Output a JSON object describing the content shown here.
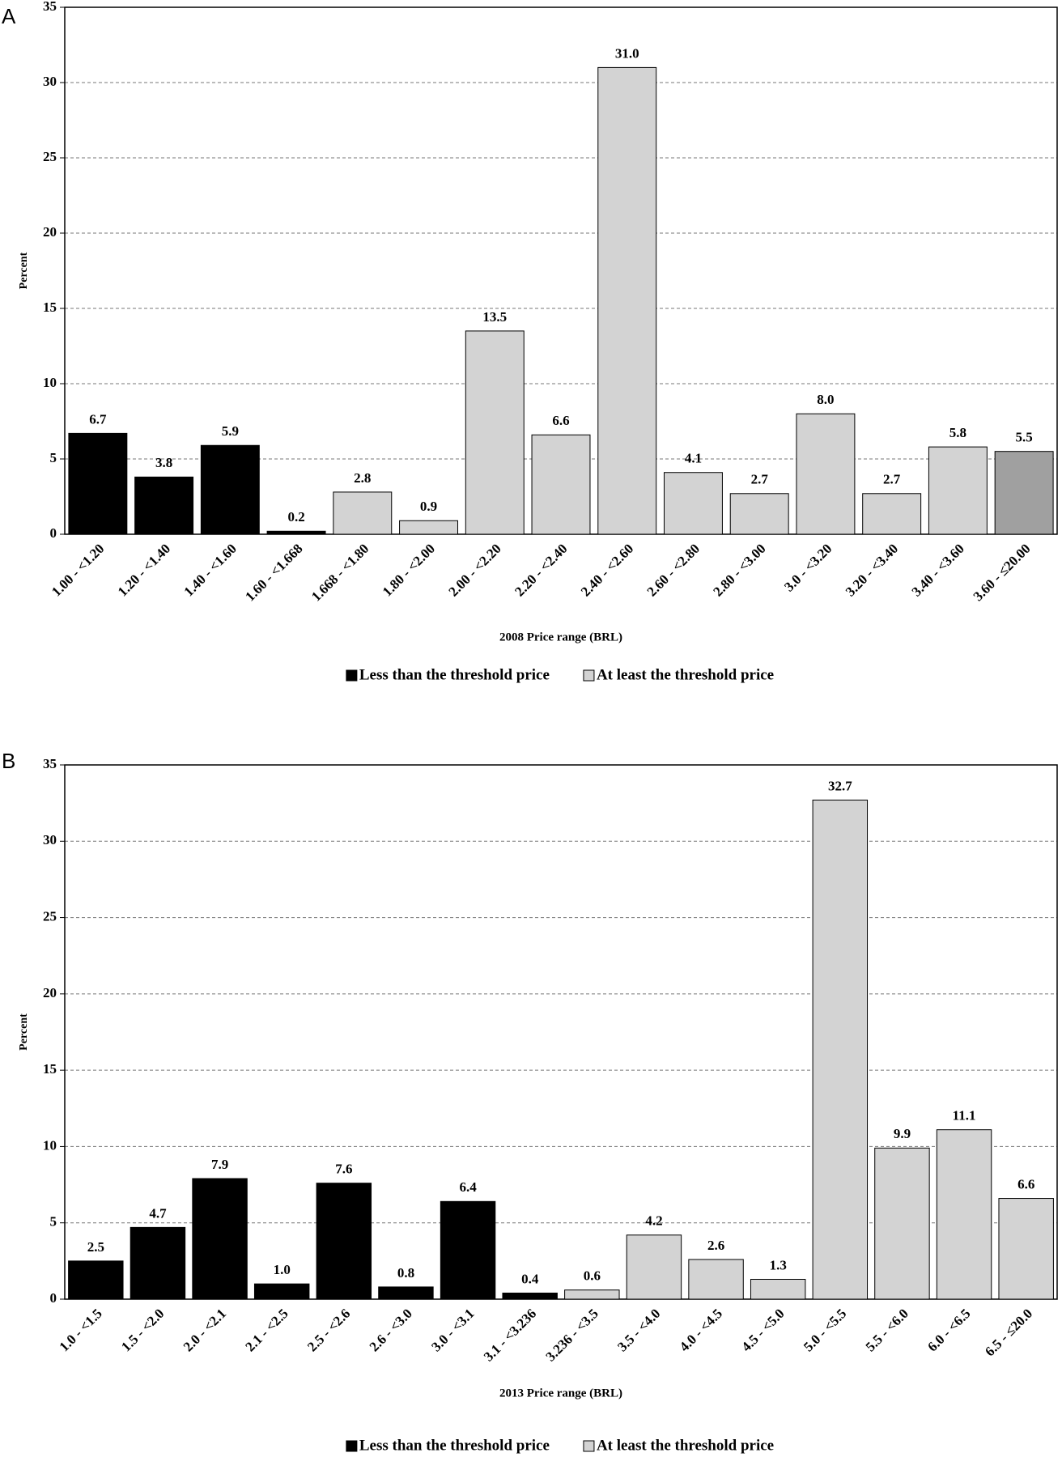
{
  "chart_data": [
    {
      "type": "bar",
      "panel": "A",
      "ylabel": "Percent",
      "xlabel": "2008 Price range (BRL)",
      "categories": [
        "1.00 - <1.20",
        "1.20 - <1.40",
        "1.40 - <1.60",
        "1.60 - <1.668",
        "1.668 - <1.80",
        "1.80 - <2.00",
        "2.00 - <2.20",
        "2.20 - <2.40",
        "2.40 - <2.60",
        "2.60 - <2.80",
        "2.80 - <3.00",
        "3.0 - <3.20",
        "3.20 - <3.40",
        "3.40 - <3.60",
        "3.60 - ≤20.00"
      ],
      "values": [
        6.7,
        3.8,
        5.9,
        0.2,
        2.8,
        0.9,
        13.5,
        6.6,
        31.0,
        4.1,
        2.7,
        8.0,
        2.7,
        5.8,
        5.5
      ],
      "value_labels": [
        "6.7",
        "3.8",
        "5.9",
        "0.2",
        "2.8",
        "0.9",
        "13.5",
        "6.6",
        "31.0",
        "4.1",
        "2.7",
        "8.0",
        "2.7",
        "5.8",
        "5.5"
      ],
      "colors": [
        "#000000",
        "#000000",
        "#000000",
        "#000000",
        "#d3d3d3",
        "#d3d3d3",
        "#d3d3d3",
        "#d3d3d3",
        "#d3d3d3",
        "#d3d3d3",
        "#d3d3d3",
        "#d3d3d3",
        "#d3d3d3",
        "#d3d3d3",
        "#a0a0a0"
      ],
      "legend": [
        {
          "name": "Less than the threshold price",
          "color": "#000000"
        },
        {
          "name": "At least the threshold price",
          "color": "#d3d3d3"
        }
      ],
      "ylim": [
        0,
        35
      ],
      "yticks": [
        0,
        5,
        10,
        15,
        20,
        25,
        30,
        35
      ],
      "grid": true
    },
    {
      "type": "bar",
      "panel": "B",
      "ylabel": "Percent",
      "xlabel": "2013 Price range (BRL)",
      "categories": [
        "1.0 - <1.5",
        "1.5 - <2.0",
        "2.0 - <2.1",
        "2.1 - <2.5",
        "2.5 - <2.6",
        "2.6 - <3.0",
        "3.0 - <3.1",
        "3.1 - <3.236",
        "3.236 - <3.5",
        "3.5 - <4.0",
        "4.0 - <4.5",
        "4.5 - <5.0",
        "5.0 - <5.5",
        "5.5 - <6.0",
        "6.0 - <6.5",
        "6.5 - ≤20.0"
      ],
      "values": [
        2.5,
        4.7,
        7.9,
        1.0,
        7.6,
        0.8,
        6.4,
        0.4,
        0.6,
        4.2,
        2.6,
        1.3,
        32.7,
        9.9,
        11.1,
        6.6
      ],
      "value_labels": [
        "2.5",
        "4.7",
        "7.9",
        "1.0",
        "7.6",
        "0.8",
        "6.4",
        "0.4",
        "0.6",
        "4.2",
        "2.6",
        "1.3",
        "32.7",
        "9.9",
        "11.1",
        "6.6"
      ],
      "colors": [
        "#000000",
        "#000000",
        "#000000",
        "#000000",
        "#000000",
        "#000000",
        "#000000",
        "#000000",
        "#d3d3d3",
        "#d3d3d3",
        "#d3d3d3",
        "#d3d3d3",
        "#d3d3d3",
        "#d3d3d3",
        "#d3d3d3",
        "#d3d3d3"
      ],
      "legend": [
        {
          "name": "Less than the threshold price",
          "color": "#000000"
        },
        {
          "name": "At least the threshold price",
          "color": "#d3d3d3"
        }
      ],
      "ylim": [
        0,
        35
      ],
      "yticks": [
        0,
        5,
        10,
        15,
        20,
        25,
        30,
        35
      ],
      "grid": true
    }
  ]
}
